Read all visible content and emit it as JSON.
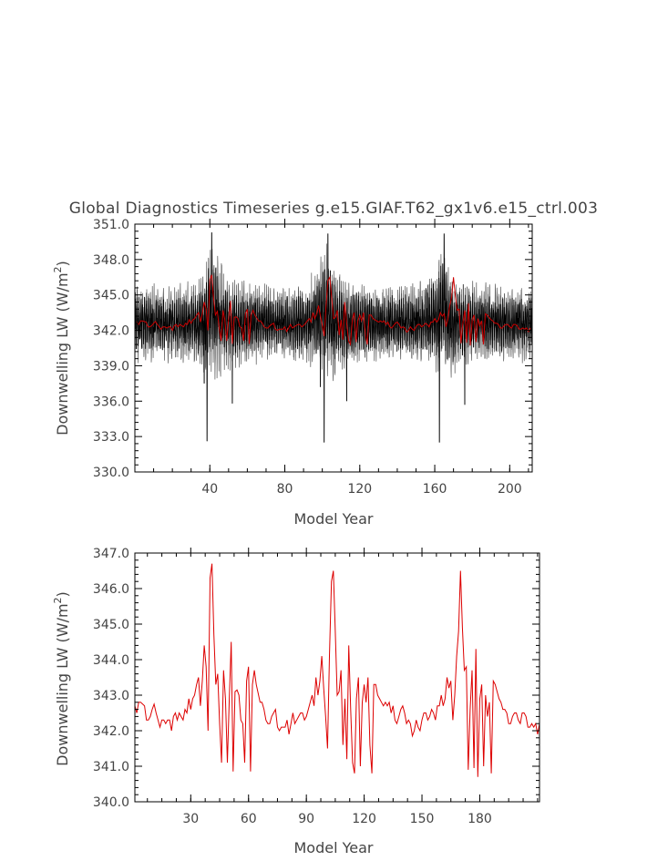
{
  "chart_data": [
    {
      "type": "line",
      "title": "Global Diagnostics Timeseries g.e15.GIAF.T62_gx1v6.e15_ctrl.003",
      "xlabel": "Model Year",
      "ylabel": "Downwelling LW (W/m",
      "ylabel_sup": "2",
      "ylabel_close": ")",
      "xlim": [
        0,
        212
      ],
      "ylim": [
        330,
        351
      ],
      "xticks": [
        40,
        80,
        120,
        160,
        200
      ],
      "xtick_labels": [
        "40",
        "80",
        "120",
        "160",
        "200"
      ],
      "yticks": [
        330,
        333,
        336,
        339,
        342,
        345,
        348,
        351
      ],
      "ytick_labels": [
        "330.0",
        "333.0",
        "336.0",
        "339.0",
        "342.0",
        "345.0",
        "348.0",
        "351.0"
      ],
      "series": [
        {
          "color": "#000000",
          "kind": "monthly",
          "envelope_x": [
            0,
            10,
            20,
            30,
            36,
            40,
            44,
            50,
            60,
            70,
            80,
            90,
            98,
            102,
            106,
            112,
            120,
            130,
            140,
            150,
            160,
            164,
            168,
            174,
            180,
            190,
            200,
            210
          ],
          "envelope_hi": [
            346.3,
            346.0,
            346.0,
            346.2,
            347.0,
            349.5,
            349.0,
            346.5,
            346.3,
            346.0,
            346.0,
            346.2,
            347.5,
            350.0,
            348.0,
            346.5,
            346.3,
            346.0,
            346.0,
            346.2,
            347.5,
            349.5,
            348.0,
            346.5,
            346.3,
            346.0,
            346.0,
            346.0
          ],
          "envelope_lo": [
            339.0,
            339.2,
            339.2,
            339.0,
            338.5,
            338.0,
            337.5,
            338.5,
            339.0,
            339.2,
            339.2,
            339.0,
            338.5,
            338.0,
            337.5,
            338.5,
            339.0,
            339.2,
            339.2,
            339.0,
            338.5,
            338.0,
            337.5,
            338.5,
            339.0,
            339.2,
            339.2,
            339.2
          ],
          "spikes": [
            [
              38.5,
              332.6
            ],
            [
              101,
              332.5
            ],
            [
              162.5,
              332.5
            ],
            [
              41,
              350.3
            ],
            [
              103,
              350.2
            ],
            [
              165,
              350.2
            ],
            [
              37,
              337.5
            ],
            [
              99,
              337.2
            ],
            [
              52,
              335.8
            ],
            [
              113,
              336.0
            ],
            [
              176,
              335.7
            ]
          ]
        },
        {
          "color": "#cc0000",
          "kind": "annual",
          "x": [
            1,
            2,
            3,
            4,
            5,
            6,
            7,
            8,
            9,
            10,
            11,
            12,
            13,
            14,
            15,
            16,
            17,
            18,
            19,
            20,
            21,
            22,
            23,
            24,
            25,
            26,
            27,
            28,
            29,
            30,
            31,
            32,
            33,
            34,
            35,
            36,
            37,
            38,
            39,
            40,
            41,
            42,
            43,
            44,
            45,
            46,
            47,
            48,
            49,
            50,
            51,
            52,
            53,
            54,
            55,
            56,
            57,
            58,
            59,
            60,
            61,
            62,
            63,
            64,
            65,
            66,
            67,
            68,
            69,
            70,
            71,
            72,
            73,
            74,
            75,
            76,
            77,
            78,
            79,
            80,
            81,
            82,
            83,
            84,
            85,
            86,
            87,
            88,
            89,
            90,
            91,
            92,
            93,
            94,
            95,
            96,
            97,
            98,
            99,
            100,
            101,
            102,
            103,
            104,
            105,
            106,
            107,
            108,
            109,
            110,
            111,
            112,
            113,
            114,
            115,
            116,
            117,
            118,
            119,
            120,
            121,
            122,
            123,
            124,
            125,
            126,
            127,
            128,
            129,
            130,
            131,
            132,
            133,
            134,
            135,
            136,
            137,
            138,
            139,
            140,
            141,
            142,
            143,
            144,
            145,
            146,
            147,
            148,
            149,
            150,
            151,
            152,
            153,
            154,
            155,
            156,
            157,
            158,
            159,
            160,
            161,
            162,
            163,
            164,
            165,
            166,
            167,
            168,
            169,
            170,
            171,
            172,
            173,
            174,
            175,
            176,
            177,
            178,
            179,
            180,
            181,
            182,
            183,
            184,
            185,
            186,
            187,
            188,
            189,
            190,
            191,
            192,
            193,
            194,
            195,
            196,
            197,
            198,
            199,
            200,
            201,
            202,
            203,
            204,
            205,
            206,
            207,
            208,
            209,
            210,
            211
          ],
          "y": [
            342.7,
            342.5,
            342.8,
            342.8,
            342.75,
            342.7,
            342.3,
            342.3,
            342.4,
            342.6,
            342.75,
            342.5,
            342.3,
            342.1,
            342.3,
            342.3,
            342.2,
            342.3,
            342.3,
            342.0,
            342.4,
            342.5,
            342.3,
            342.5,
            342.4,
            342.3,
            342.6,
            342.5,
            342.9,
            342.6,
            342.9,
            343.0,
            343.3,
            343.5,
            342.7,
            343.4,
            344.4,
            343.8,
            342.0,
            346.3,
            346.7,
            344.7,
            343.3,
            343.6,
            342.2,
            341.1,
            343.7,
            342.9,
            341.1,
            342.9,
            344.5,
            340.85,
            343.1,
            343.15,
            343.0,
            342.3,
            342.2,
            341.1,
            343.4,
            343.8,
            340.85,
            343.3,
            343.7,
            343.3,
            343.05,
            342.8,
            342.8,
            342.6,
            342.3,
            342.2,
            342.2,
            342.4,
            342.5,
            342.6,
            342.1,
            342.0,
            342.1,
            342.1,
            342.1,
            342.3,
            341.9,
            342.2,
            342.5,
            342.2,
            342.3,
            342.4,
            342.5,
            342.5,
            342.3,
            342.4,
            342.6,
            342.8,
            343.0,
            342.7,
            343.5,
            343.0,
            343.4,
            344.1,
            343.2,
            342.4,
            341.5,
            344.1,
            346.2,
            346.5,
            344.8,
            343.0,
            343.1,
            343.7,
            341.6,
            342.9,
            341.2,
            344.4,
            342.6,
            341.1,
            340.8,
            342.9,
            343.5,
            341.0,
            342.8,
            343.3,
            342.8,
            343.5,
            341.6,
            340.8,
            343.3,
            343.3,
            343.0,
            342.9,
            342.8,
            342.7,
            342.8,
            342.7,
            342.8,
            342.5,
            342.7,
            342.3,
            342.2,
            342.4,
            342.6,
            342.7,
            342.5,
            342.2,
            342.3,
            342.2,
            341.85,
            342.0,
            342.3,
            342.1,
            342.0,
            342.3,
            342.5,
            342.5,
            342.3,
            342.4,
            342.6,
            342.5,
            342.3,
            342.7,
            342.7,
            343.0,
            342.7,
            342.9,
            343.5,
            343.2,
            343.4,
            342.3,
            343.0,
            344.1,
            344.8,
            346.5,
            344.9,
            343.7,
            343.8,
            340.9,
            342.6,
            343.7,
            340.95,
            344.3,
            340.7,
            342.9,
            343.3,
            341.0,
            343.0,
            342.4,
            342.8,
            340.8,
            343.4,
            343.3,
            343.1,
            342.9,
            342.8,
            342.6,
            342.6,
            342.5,
            342.2,
            342.2,
            342.4,
            342.5,
            342.5,
            342.3,
            342.2,
            342.5,
            342.5,
            342.4,
            342.1,
            342.1,
            342.2,
            342.1,
            342.2,
            341.9,
            342.2
          ]
        }
      ]
    },
    {
      "type": "line",
      "title": "",
      "xlabel": "Model Year",
      "ylabel": "Downwelling LW (W/m",
      "ylabel_sup": "2",
      "ylabel_close": ")",
      "xlim": [
        1,
        211
      ],
      "ylim": [
        340,
        347
      ],
      "xticks": [
        30,
        60,
        90,
        120,
        150,
        180
      ],
      "xtick_labels": [
        "30",
        "60",
        "90",
        "120",
        "150",
        "180"
      ],
      "yticks": [
        340,
        341,
        342,
        343,
        344,
        345,
        346,
        347
      ],
      "ytick_labels": [
        "340.0",
        "341.0",
        "342.0",
        "343.0",
        "344.0",
        "345.0",
        "346.0",
        "347.0"
      ],
      "series": [
        {
          "color": "#dd0000",
          "kind": "annual",
          "ref": 0
        }
      ]
    }
  ]
}
